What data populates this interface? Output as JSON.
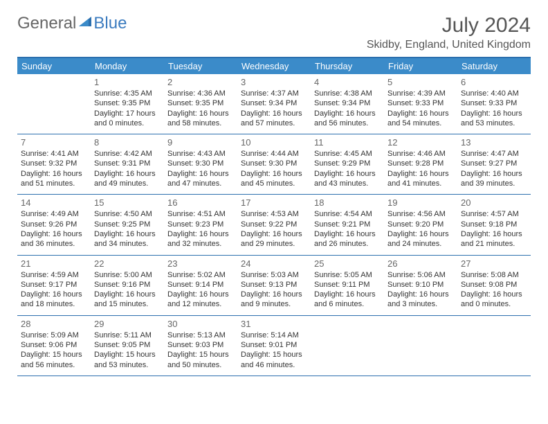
{
  "logo": {
    "part1": "General",
    "part2": "Blue"
  },
  "title": "July 2024",
  "location": "Skidby, England, United Kingdom",
  "colors": {
    "header_bg": "#3b8bc9",
    "header_text": "#ffffff",
    "border": "#2b6fae",
    "logo_blue": "#3b7bbf",
    "text": "#333333",
    "title_text": "#555555",
    "daynum_text": "#666666",
    "page_bg": "#ffffff"
  },
  "fonts": {
    "family": "Arial",
    "title_size_pt": 30,
    "location_size_pt": 16,
    "dayheader_size_pt": 13,
    "daynum_size_pt": 13,
    "info_size_pt": 11
  },
  "dayNames": [
    "Sunday",
    "Monday",
    "Tuesday",
    "Wednesday",
    "Thursday",
    "Friday",
    "Saturday"
  ],
  "weeks": [
    [
      {},
      {
        "n": "1",
        "sr": "Sunrise: 4:35 AM",
        "ss": "Sunset: 9:35 PM",
        "dl1": "Daylight: 17 hours",
        "dl2": "and 0 minutes."
      },
      {
        "n": "2",
        "sr": "Sunrise: 4:36 AM",
        "ss": "Sunset: 9:35 PM",
        "dl1": "Daylight: 16 hours",
        "dl2": "and 58 minutes."
      },
      {
        "n": "3",
        "sr": "Sunrise: 4:37 AM",
        "ss": "Sunset: 9:34 PM",
        "dl1": "Daylight: 16 hours",
        "dl2": "and 57 minutes."
      },
      {
        "n": "4",
        "sr": "Sunrise: 4:38 AM",
        "ss": "Sunset: 9:34 PM",
        "dl1": "Daylight: 16 hours",
        "dl2": "and 56 minutes."
      },
      {
        "n": "5",
        "sr": "Sunrise: 4:39 AM",
        "ss": "Sunset: 9:33 PM",
        "dl1": "Daylight: 16 hours",
        "dl2": "and 54 minutes."
      },
      {
        "n": "6",
        "sr": "Sunrise: 4:40 AM",
        "ss": "Sunset: 9:33 PM",
        "dl1": "Daylight: 16 hours",
        "dl2": "and 53 minutes."
      }
    ],
    [
      {
        "n": "7",
        "sr": "Sunrise: 4:41 AM",
        "ss": "Sunset: 9:32 PM",
        "dl1": "Daylight: 16 hours",
        "dl2": "and 51 minutes."
      },
      {
        "n": "8",
        "sr": "Sunrise: 4:42 AM",
        "ss": "Sunset: 9:31 PM",
        "dl1": "Daylight: 16 hours",
        "dl2": "and 49 minutes."
      },
      {
        "n": "9",
        "sr": "Sunrise: 4:43 AM",
        "ss": "Sunset: 9:30 PM",
        "dl1": "Daylight: 16 hours",
        "dl2": "and 47 minutes."
      },
      {
        "n": "10",
        "sr": "Sunrise: 4:44 AM",
        "ss": "Sunset: 9:30 PM",
        "dl1": "Daylight: 16 hours",
        "dl2": "and 45 minutes."
      },
      {
        "n": "11",
        "sr": "Sunrise: 4:45 AM",
        "ss": "Sunset: 9:29 PM",
        "dl1": "Daylight: 16 hours",
        "dl2": "and 43 minutes."
      },
      {
        "n": "12",
        "sr": "Sunrise: 4:46 AM",
        "ss": "Sunset: 9:28 PM",
        "dl1": "Daylight: 16 hours",
        "dl2": "and 41 minutes."
      },
      {
        "n": "13",
        "sr": "Sunrise: 4:47 AM",
        "ss": "Sunset: 9:27 PM",
        "dl1": "Daylight: 16 hours",
        "dl2": "and 39 minutes."
      }
    ],
    [
      {
        "n": "14",
        "sr": "Sunrise: 4:49 AM",
        "ss": "Sunset: 9:26 PM",
        "dl1": "Daylight: 16 hours",
        "dl2": "and 36 minutes."
      },
      {
        "n": "15",
        "sr": "Sunrise: 4:50 AM",
        "ss": "Sunset: 9:25 PM",
        "dl1": "Daylight: 16 hours",
        "dl2": "and 34 minutes."
      },
      {
        "n": "16",
        "sr": "Sunrise: 4:51 AM",
        "ss": "Sunset: 9:23 PM",
        "dl1": "Daylight: 16 hours",
        "dl2": "and 32 minutes."
      },
      {
        "n": "17",
        "sr": "Sunrise: 4:53 AM",
        "ss": "Sunset: 9:22 PM",
        "dl1": "Daylight: 16 hours",
        "dl2": "and 29 minutes."
      },
      {
        "n": "18",
        "sr": "Sunrise: 4:54 AM",
        "ss": "Sunset: 9:21 PM",
        "dl1": "Daylight: 16 hours",
        "dl2": "and 26 minutes."
      },
      {
        "n": "19",
        "sr": "Sunrise: 4:56 AM",
        "ss": "Sunset: 9:20 PM",
        "dl1": "Daylight: 16 hours",
        "dl2": "and 24 minutes."
      },
      {
        "n": "20",
        "sr": "Sunrise: 4:57 AM",
        "ss": "Sunset: 9:18 PM",
        "dl1": "Daylight: 16 hours",
        "dl2": "and 21 minutes."
      }
    ],
    [
      {
        "n": "21",
        "sr": "Sunrise: 4:59 AM",
        "ss": "Sunset: 9:17 PM",
        "dl1": "Daylight: 16 hours",
        "dl2": "and 18 minutes."
      },
      {
        "n": "22",
        "sr": "Sunrise: 5:00 AM",
        "ss": "Sunset: 9:16 PM",
        "dl1": "Daylight: 16 hours",
        "dl2": "and 15 minutes."
      },
      {
        "n": "23",
        "sr": "Sunrise: 5:02 AM",
        "ss": "Sunset: 9:14 PM",
        "dl1": "Daylight: 16 hours",
        "dl2": "and 12 minutes."
      },
      {
        "n": "24",
        "sr": "Sunrise: 5:03 AM",
        "ss": "Sunset: 9:13 PM",
        "dl1": "Daylight: 16 hours",
        "dl2": "and 9 minutes."
      },
      {
        "n": "25",
        "sr": "Sunrise: 5:05 AM",
        "ss": "Sunset: 9:11 PM",
        "dl1": "Daylight: 16 hours",
        "dl2": "and 6 minutes."
      },
      {
        "n": "26",
        "sr": "Sunrise: 5:06 AM",
        "ss": "Sunset: 9:10 PM",
        "dl1": "Daylight: 16 hours",
        "dl2": "and 3 minutes."
      },
      {
        "n": "27",
        "sr": "Sunrise: 5:08 AM",
        "ss": "Sunset: 9:08 PM",
        "dl1": "Daylight: 16 hours",
        "dl2": "and 0 minutes."
      }
    ],
    [
      {
        "n": "28",
        "sr": "Sunrise: 5:09 AM",
        "ss": "Sunset: 9:06 PM",
        "dl1": "Daylight: 15 hours",
        "dl2": "and 56 minutes."
      },
      {
        "n": "29",
        "sr": "Sunrise: 5:11 AM",
        "ss": "Sunset: 9:05 PM",
        "dl1": "Daylight: 15 hours",
        "dl2": "and 53 minutes."
      },
      {
        "n": "30",
        "sr": "Sunrise: 5:13 AM",
        "ss": "Sunset: 9:03 PM",
        "dl1": "Daylight: 15 hours",
        "dl2": "and 50 minutes."
      },
      {
        "n": "31",
        "sr": "Sunrise: 5:14 AM",
        "ss": "Sunset: 9:01 PM",
        "dl1": "Daylight: 15 hours",
        "dl2": "and 46 minutes."
      },
      {},
      {},
      {}
    ]
  ]
}
